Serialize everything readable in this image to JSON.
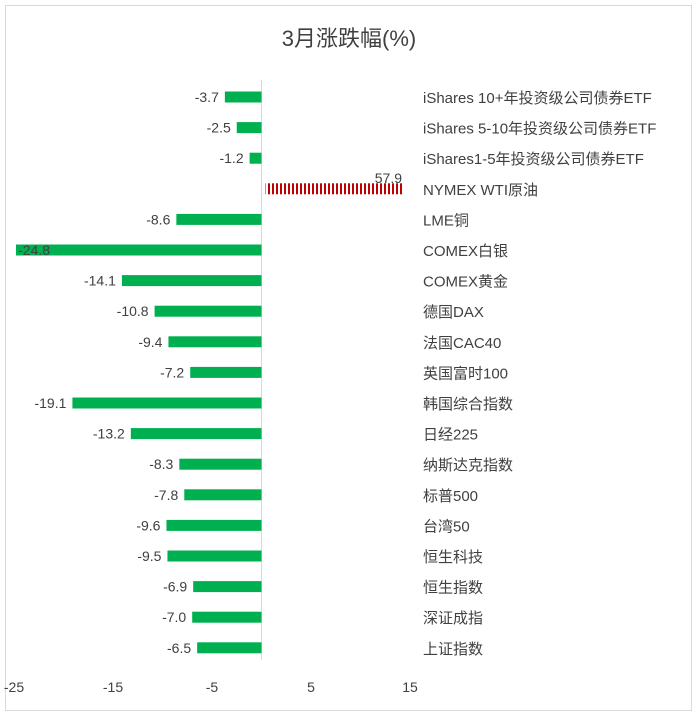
{
  "chart_data": {
    "type": "bar",
    "orientation": "horizontal",
    "title": "3月涨跌幅(%)",
    "categories": [
      "iShares 10+年投资级公司债券ETF",
      "iShares 5-10年投资级公司债券ETF",
      "iShares1-5年投资级公司债券ETF",
      "NYMEX WTI原油",
      "LME铜",
      "COMEX白银",
      "COMEX黄金",
      "德国DAX",
      "法国CAC40",
      "英国富时100",
      "韩国综合指数",
      "日经225",
      "纳斯达克指数",
      "标普500",
      "台湾50",
      "恒生科技",
      "恒生指数",
      "深证成指",
      "上证指数"
    ],
    "values": [
      -3.7,
      -2.5,
      -1.2,
      57.9,
      -8.6,
      -24.8,
      -14.1,
      -10.8,
      -9.4,
      -7.2,
      -19.1,
      -13.2,
      -8.3,
      -7.8,
      -9.6,
      -9.5,
      -6.9,
      -7.0,
      -6.5
    ],
    "value_labels": [
      "-3.7",
      "-2.5",
      "-1.2",
      "57.9",
      "-8.6",
      "-24.8",
      "-14.1",
      "-10.8",
      "-9.4",
      "-7.2",
      "-19.1",
      "-13.2",
      "-8.3",
      "-7.8",
      "-9.6",
      "-9.5",
      "-6.9",
      "-7.0",
      "-6.5"
    ],
    "xlim": [
      -25,
      15
    ],
    "xticks": [
      "-25",
      "-15",
      "-5",
      "5",
      "15"
    ],
    "grid": false,
    "legend": "none",
    "colors": {
      "negative": "#00b050",
      "positive": "#c00000",
      "axis": "#d9d9d9",
      "text": "#404040"
    },
    "positive_fill": "striped"
  }
}
